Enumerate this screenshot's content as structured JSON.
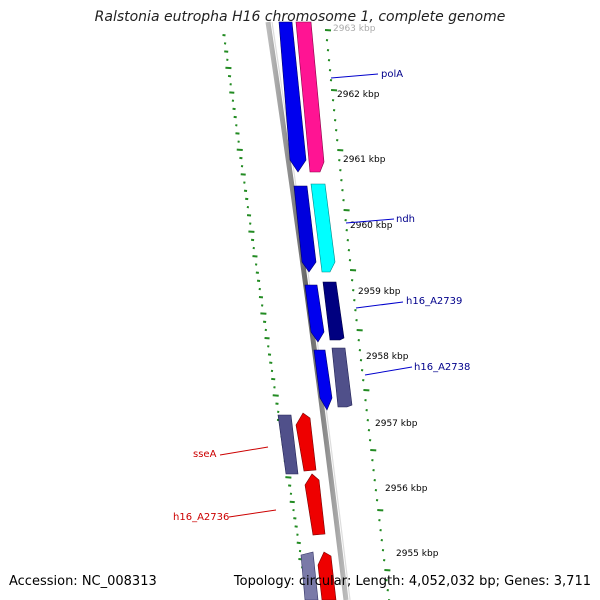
{
  "title": "Ralstonia eutropha H16 chromosome 1, complete genome",
  "footer": {
    "accession": "Accession: NC_008313",
    "summary": "Topology: circular; Length: 4,052,032 bp; Genes: 3,711"
  },
  "scale_labels": [
    "2963 kbp",
    "2962 kbp",
    "2961 kbp",
    "2960 kbp",
    "2959 kbp",
    "2958 kbp",
    "2957 kbp",
    "2956 kbp",
    "2955 kbp"
  ],
  "gene_labels": [
    {
      "name": "polA",
      "strand": "forward"
    },
    {
      "name": "ndh",
      "strand": "forward"
    },
    {
      "name": "h16_A2739",
      "strand": "forward"
    },
    {
      "name": "h16_A2738",
      "strand": "forward"
    },
    {
      "name": "sseA",
      "strand": "reverse"
    },
    {
      "name": "h16_A2736",
      "strand": "reverse"
    }
  ],
  "colors": {
    "backbone": "#888888",
    "forward_cds": "#0000ee",
    "reverse_cds": "#ee0000",
    "gc_ticks": "#228b22",
    "scale_ticks": "#228b22"
  }
}
